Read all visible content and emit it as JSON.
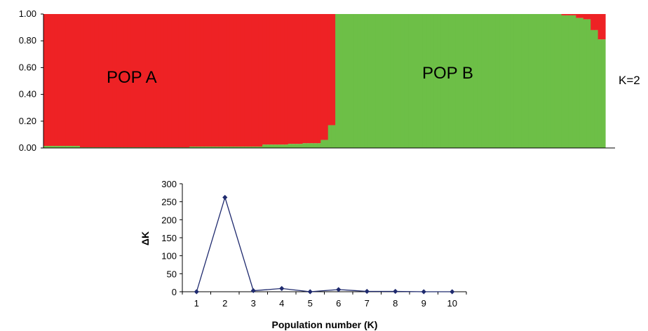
{
  "colors": {
    "pop_a": "#ee2225",
    "pop_b": "#6dbf47",
    "line": "#1f2a6e"
  },
  "chart_data": [
    {
      "type": "bar",
      "subtype": "stacked-structure",
      "ylim": [
        0,
        1
      ],
      "yticks": [
        "0.00",
        "0.20",
        "0.40",
        "0.60",
        "0.80",
        "1.00"
      ],
      "pop_a_label": "POP A",
      "pop_b_label": "POP B",
      "k_label": "K=2",
      "segments": [
        {
          "count": 10,
          "a": 0.985
        },
        {
          "count": 30,
          "a": 0.995
        },
        {
          "count": 20,
          "a": 0.99
        },
        {
          "count": 7,
          "a": 0.975
        },
        {
          "count": 4,
          "a": 0.97
        },
        {
          "count": 5,
          "a": 0.965
        },
        {
          "count": 2,
          "a": 0.94
        },
        {
          "count": 2,
          "a": 0.83
        },
        {
          "count": 5,
          "a": 0.0
        },
        {
          "count": 57,
          "a": 0.0
        },
        {
          "count": 4,
          "a": 0.01
        },
        {
          "count": 2,
          "a": 0.03
        },
        {
          "count": 2,
          "a": 0.04
        },
        {
          "count": 2,
          "a": 0.12
        },
        {
          "count": 2,
          "a": 0.19
        }
      ]
    },
    {
      "type": "line",
      "x": [
        1,
        2,
        3,
        4,
        5,
        6,
        7,
        8,
        9,
        10
      ],
      "y": [
        0,
        262,
        3,
        9,
        0,
        6,
        1,
        1,
        0,
        0
      ],
      "xlabel": "Population number (K)",
      "ylabel": "ΔK",
      "xlim": [
        0.5,
        10.5
      ],
      "ylim": [
        0,
        300
      ],
      "yticks": [
        0,
        50,
        100,
        150,
        200,
        250,
        300
      ]
    }
  ]
}
